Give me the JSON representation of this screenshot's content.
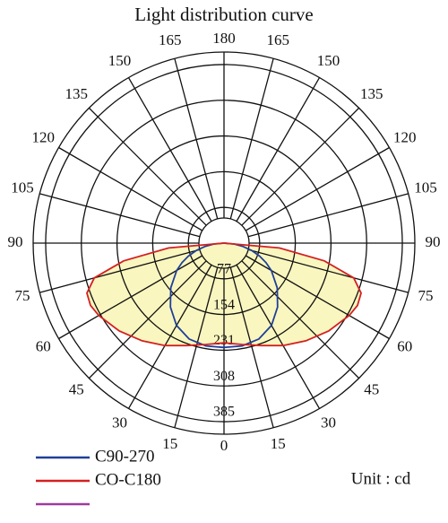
{
  "chart_data": {
    "type": "polar",
    "title": "Light distribution curve",
    "unit_label": "Unit : cd",
    "angle_ticks": [
      0,
      15,
      30,
      45,
      60,
      75,
      90,
      105,
      120,
      135,
      150,
      165,
      180
    ],
    "rlim": [
      0,
      412
    ],
    "rticks": [
      77,
      154,
      231,
      308,
      385
    ],
    "angles": [
      0,
      10,
      20,
      30,
      40,
      50,
      60,
      65,
      70,
      75,
      80,
      85,
      90
    ],
    "fill_color": "#f8f4b4",
    "series": [
      {
        "name": "C90-270",
        "color": "#1f3f9a",
        "values": [
          225,
          225,
          220,
          205,
          180,
          150,
          118,
          100,
          82,
          62,
          42,
          22,
          0
        ]
      },
      {
        "name": "CO-C180",
        "color": "#d42020",
        "values": [
          215,
          222,
          235,
          255,
          275,
          295,
          312,
          318,
          315,
          290,
          220,
          120,
          0
        ]
      }
    ]
  }
}
